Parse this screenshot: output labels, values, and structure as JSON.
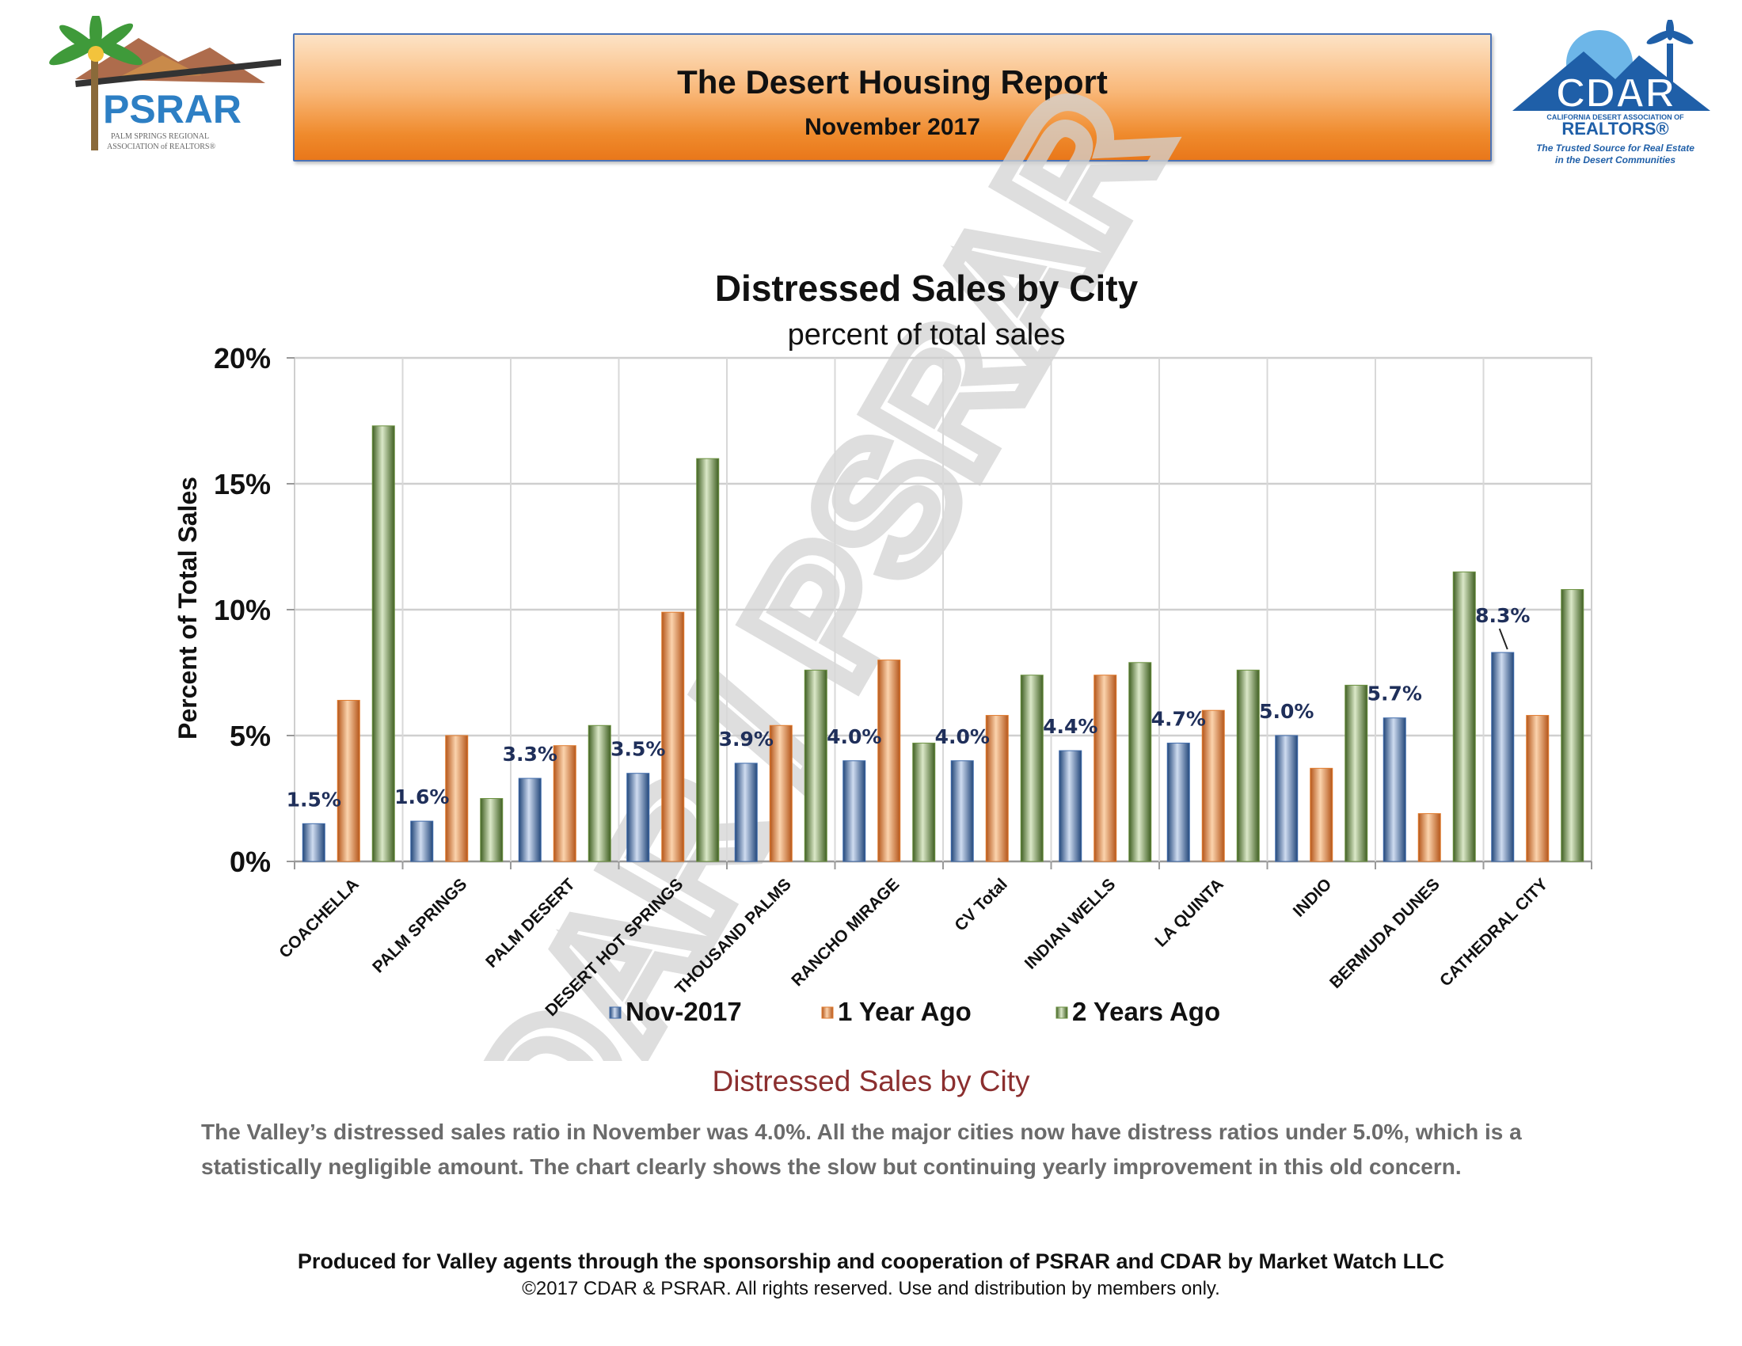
{
  "header": {
    "title": "The Desert Housing Report",
    "date": "November 2017"
  },
  "psrar_logo": {
    "name": "PSRAR",
    "tagline_line1": "PALM SPRINGS REGIONAL",
    "tagline_line2": "ASSOCIATION of REALTORS®"
  },
  "cdar_logo": {
    "name": "CDAR",
    "assoc": "CALIFORNIA DESERT ASSOCIATION OF",
    "realtors": "REALTORS®",
    "slogan_line1": "The Trusted Source for Real Estate",
    "slogan_line2": "in the Desert Communities"
  },
  "watermark": "CDAR / PSRAR",
  "chart_data": {
    "type": "bar",
    "title": "Distressed Sales by City",
    "subtitle": "percent of total sales",
    "xlabel": "",
    "ylabel": "Percent of Total Sales",
    "ylim": [
      0,
      20
    ],
    "yticks": [
      "0%",
      "5%",
      "10%",
      "15%",
      "20%"
    ],
    "grid": true,
    "legend_position": "bottom",
    "categories": [
      "COACHELLA",
      "PALM SPRINGS",
      "PALM DESERT",
      "DESERT HOT SPRINGS",
      "THOUSAND PALMS",
      "RANCHO MIRAGE",
      "CV Total",
      "INDIAN WELLS",
      "LA QUINTA",
      "INDIO",
      "BERMUDA DUNES",
      "CATHEDRAL CITY"
    ],
    "series": [
      {
        "name": "Nov-2017",
        "color": "#3f6bab",
        "values": [
          1.5,
          1.6,
          3.3,
          3.5,
          3.9,
          4.0,
          4.0,
          4.4,
          4.7,
          5.0,
          5.7,
          8.3
        ]
      },
      {
        "name": "1 Year Ago",
        "color": "#e07b2e",
        "values": [
          6.4,
          5.0,
          4.6,
          9.9,
          5.4,
          8.0,
          5.8,
          7.4,
          6.0,
          3.7,
          1.9,
          5.8
        ]
      },
      {
        "name": "2 Years Ago",
        "color": "#6b9140",
        "values": [
          17.3,
          2.5,
          5.4,
          16.0,
          7.6,
          4.7,
          7.4,
          7.9,
          7.6,
          7.0,
          11.5,
          10.8
        ]
      }
    ],
    "data_labels": [
      "1.5%",
      "1.6%",
      "3.3%",
      "3.5%",
      "3.9%",
      "4.0%",
      "4.0%",
      "4.4%",
      "4.7%",
      "5.0%",
      "5.7%",
      "8.3%"
    ]
  },
  "section_heading": "Distressed Sales by City",
  "body_text": "The Valley’s distressed sales ratio in November was 4.0%. All the major cities now have distress ratios under 5.0%, which is a statistically negligible amount. The chart clearly shows the slow but continuing yearly improvement in this old concern.",
  "footer": {
    "credit": "Produced for Valley agents through the sponsorship and cooperation of PSRAR and CDAR by Market Watch LLC",
    "copyright": "©2017 CDAR & PSRAR.  All rights reserved.  Use and distribution by members only."
  }
}
